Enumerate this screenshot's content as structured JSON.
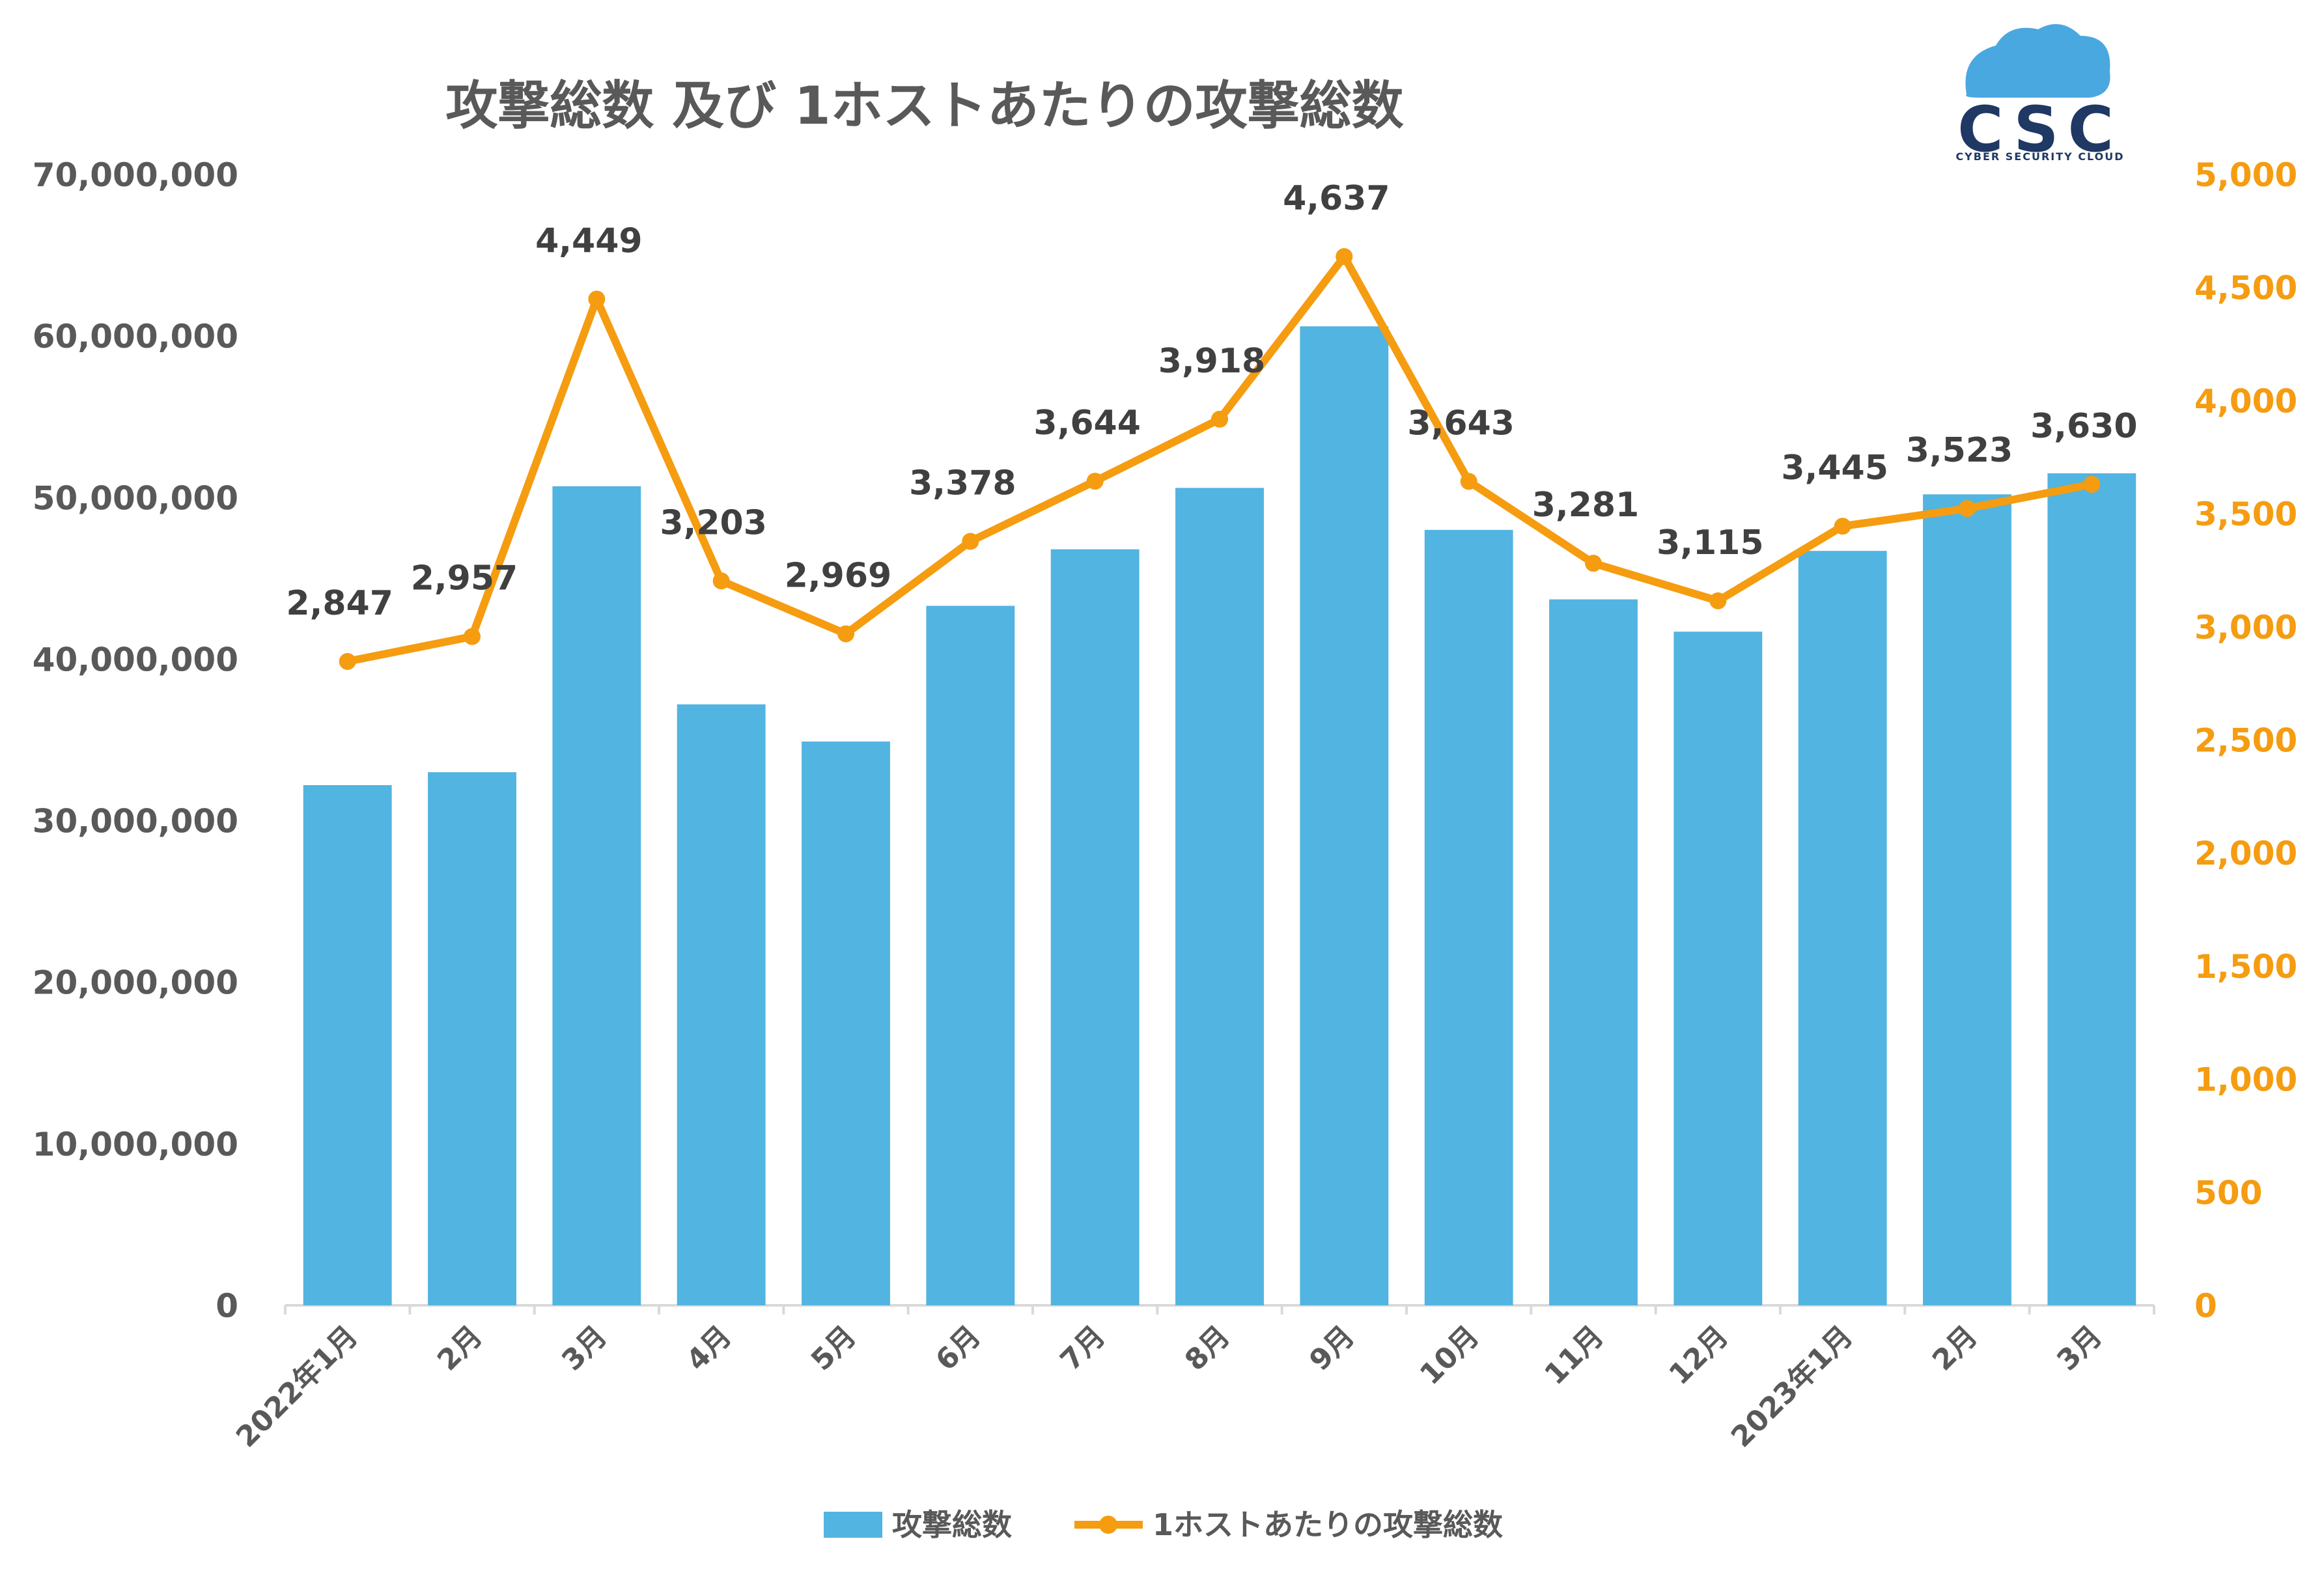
{
  "logo": {
    "wordmark": "CSC",
    "tagline": "CYBER SECURITY CLOUD"
  },
  "colors": {
    "bar": "#52B4E0",
    "line": "#F59C10",
    "axis_left_text": "#595959",
    "axis_right_text": "#F59C10",
    "logo_dark": "#1F3864",
    "logo_cloud": "#4AA8E0"
  },
  "chart_data": {
    "type": "bar",
    "title": "攻撃総数 及び 1ホストあたりの攻撃総数",
    "categories": [
      "2022年1月",
      "2月",
      "3月",
      "4月",
      "5月",
      "6月",
      "7月",
      "8月",
      "9月",
      "10月",
      "11月",
      "12月",
      "2023年1月",
      "2月",
      "3月"
    ],
    "series": [
      {
        "name": "攻撃総数",
        "type": "bar",
        "axis": "left",
        "values": [
          32200000,
          33000000,
          50700000,
          37200000,
          34900000,
          43300000,
          46800000,
          50600000,
          60600000,
          48000000,
          43700000,
          41700000,
          46700000,
          50200000,
          51500000
        ]
      },
      {
        "name": "1ホストあたりの攻撃総数",
        "type": "line",
        "axis": "right",
        "values": [
          2847,
          2957,
          4449,
          3203,
          2969,
          3378,
          3644,
          3918,
          4637,
          3643,
          3281,
          3115,
          3445,
          3523,
          3630
        ],
        "labels": [
          "2,847",
          "2,957",
          "4,449",
          "3,203",
          "2,969",
          "3,378",
          "3,644",
          "3,918",
          "4,637",
          "3,643",
          "3,281",
          "3,115",
          "3,445",
          "3,523",
          "3,630"
        ]
      }
    ],
    "y_left": {
      "ylim": [
        0,
        70000000
      ],
      "ticks": [
        0,
        10000000,
        20000000,
        30000000,
        40000000,
        50000000,
        60000000,
        70000000
      ],
      "tick_labels": [
        "0",
        "10,000,000",
        "20,000,000",
        "30,000,000",
        "40,000,000",
        "50,000,000",
        "60,000,000",
        "70,000,000"
      ]
    },
    "y_right": {
      "ylim": [
        0,
        5000
      ],
      "ticks": [
        0,
        500,
        1000,
        1500,
        2000,
        2500,
        3000,
        3500,
        4000,
        4500,
        5000
      ],
      "tick_labels": [
        "0",
        "500",
        "1,000",
        "1,500",
        "2,000",
        "2,500",
        "3,000",
        "3,500",
        "4,000",
        "4,500",
        "5,000"
      ]
    },
    "grid": false,
    "legend_position": "bottom"
  }
}
